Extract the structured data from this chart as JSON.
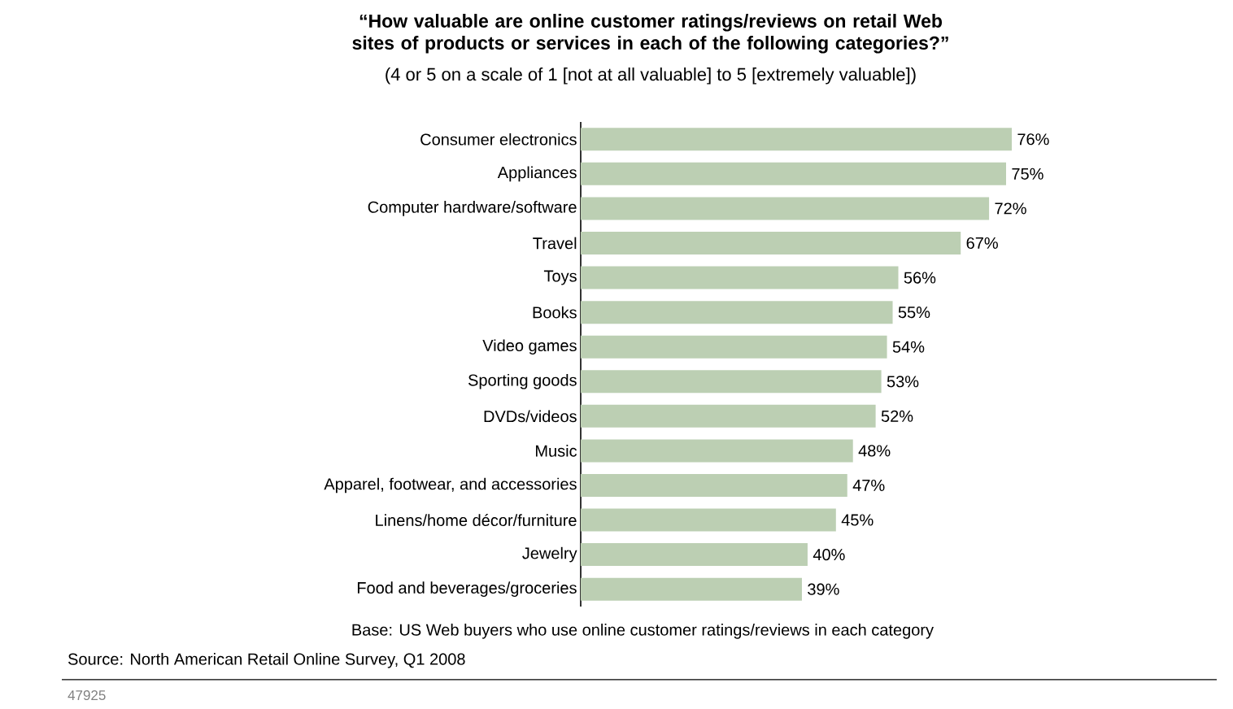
{
  "chart_data": {
    "type": "bar",
    "orientation": "horizontal",
    "title": "“How valuable are online customer ratings/reviews on retail Web sites of products or services in each of the following categories?”",
    "subtitle": "(4 or 5 on a scale of 1 [not at all valuable] to 5 [extremely valuable])",
    "categories": [
      "Consumer electronics",
      "Appliances",
      "Computer hardware/software",
      "Travel",
      "Toys",
      "Books",
      "Video games",
      "Sporting goods",
      "DVDs/videos",
      "Music",
      "Apparel, footwear, and accessories",
      "Linens/home décor/furniture",
      "Jewelry",
      "Food and beverages/groceries"
    ],
    "values": [
      76,
      75,
      72,
      67,
      56,
      55,
      54,
      53,
      52,
      48,
      47,
      45,
      40,
      39
    ],
    "value_labels": [
      "76%",
      "75%",
      "72%",
      "67%",
      "56%",
      "55%",
      "54%",
      "53%",
      "52%",
      "48%",
      "47%",
      "45%",
      "40%",
      "39%"
    ],
    "color": "#bccfb3",
    "annotations": [
      "Base: US Web buyers who use online customer ratings/reviews in each category",
      "Source: North American Retail Online Survey, Q1 2008",
      "47925"
    ]
  }
}
